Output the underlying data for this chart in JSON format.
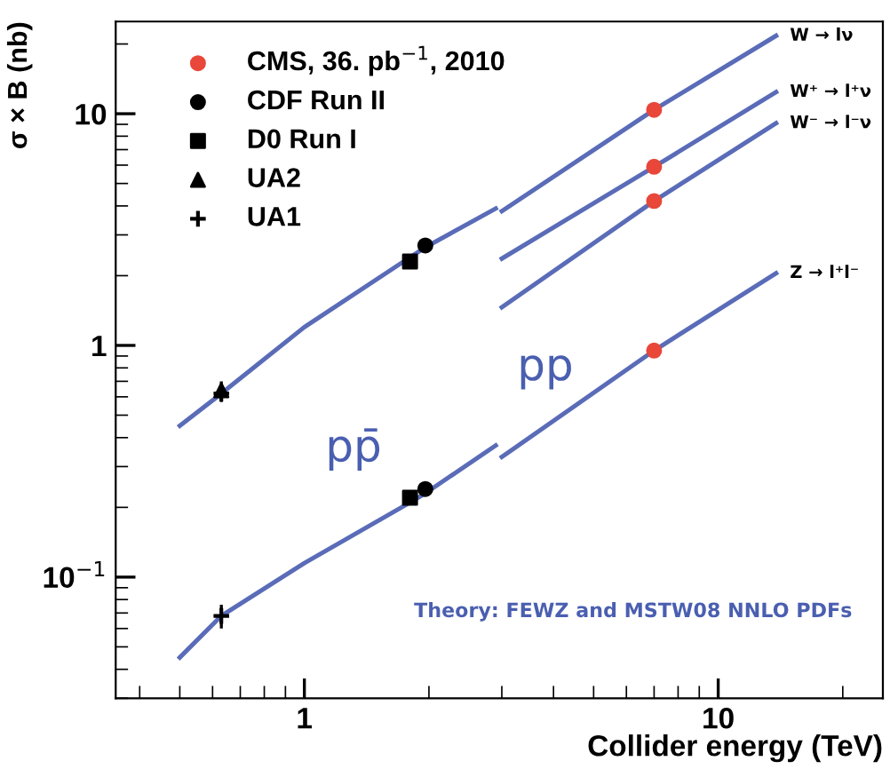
{
  "chart_data": {
    "type": "line",
    "xlabel": "Collider energy (TeV)",
    "ylabel": "σ × B (nb)",
    "log": "xy",
    "xlim": [
      0.35,
      25
    ],
    "ylim": [
      0.03,
      25
    ],
    "xticks": [
      1,
      10
    ],
    "yticks": [
      {
        "value": 0.1,
        "label": "10$^{−1}$"
      },
      1,
      10
    ],
    "grid": false,
    "legend": "top left",
    "series": [
      {
        "name": "W → lν",
        "color": "#5a6cb8",
        "x": [
          3,
          7,
          13.8
        ],
        "values": [
          3.8,
          10.4,
          21.7
        ]
      },
      {
        "name": "W⁺ → l⁺ν",
        "color": "#5a6cb8",
        "x": [
          3,
          7,
          13.8
        ],
        "values": [
          2.37,
          5.9,
          12.4
        ]
      },
      {
        "name": "W⁻ → l⁻ν",
        "color": "#5a6cb8",
        "x": [
          3,
          7,
          13.8
        ],
        "values": [
          1.46,
          4.2,
          9.1
        ]
      },
      {
        "name": "Z → l⁺l⁻",
        "color": "#5a6cb8",
        "x": [
          3,
          7,
          13.8
        ],
        "values": [
          0.33,
          0.95,
          2.05
        ]
      },
      {
        "color": "#5a6cb8",
        "x": [
          0.5,
          0.63,
          1,
          1.8,
          1.96,
          2.9
        ],
        "values": [
          0.45,
          0.62,
          1.2,
          2.4,
          2.65,
          3.9
        ]
      },
      {
        "color": "#5a6cb8",
        "x": [
          0.5,
          0.63,
          1,
          1.8,
          1.96,
          2.9
        ],
        "values": [
          0.045,
          0.068,
          0.115,
          0.21,
          0.23,
          0.37
        ]
      },
      {
        "name": "CMS, 36. pb$^{−1}$, 2010",
        "type": "scatter",
        "marker": "circle",
        "color": "#e8473a",
        "x": [
          7,
          7,
          7,
          7
        ],
        "values": [
          10.4,
          5.9,
          4.2,
          0.95
        ]
      },
      {
        "name": "CDF Run II",
        "type": "scatter",
        "marker": "circle",
        "color": "#000000",
        "x": [
          1.96,
          1.96
        ],
        "values": [
          2.7,
          0.24
        ]
      },
      {
        "name": "D0 Run I",
        "type": "scatter",
        "marker": "square",
        "color": "#000000",
        "x": [
          1.8,
          1.8
        ],
        "values": [
          2.3,
          0.22
        ]
      },
      {
        "name": "UA2",
        "type": "scatter",
        "marker": "triangle",
        "color": "#000000",
        "x": [
          0.63
        ],
        "values": [
          0.64
        ],
        "errors": [
          0.06
        ]
      },
      {
        "name": "UA1",
        "type": "scatter",
        "marker": "cross",
        "color": "#000000",
        "x": [
          0.63,
          0.63
        ],
        "values": [
          0.62,
          0.068
        ],
        "errors": [
          0.05,
          0.008
        ]
      }
    ],
    "annotations": [
      "pp",
      "pp̄",
      "Theory: FEWZ and MSTW08 NNLO PDFs"
    ]
  }
}
